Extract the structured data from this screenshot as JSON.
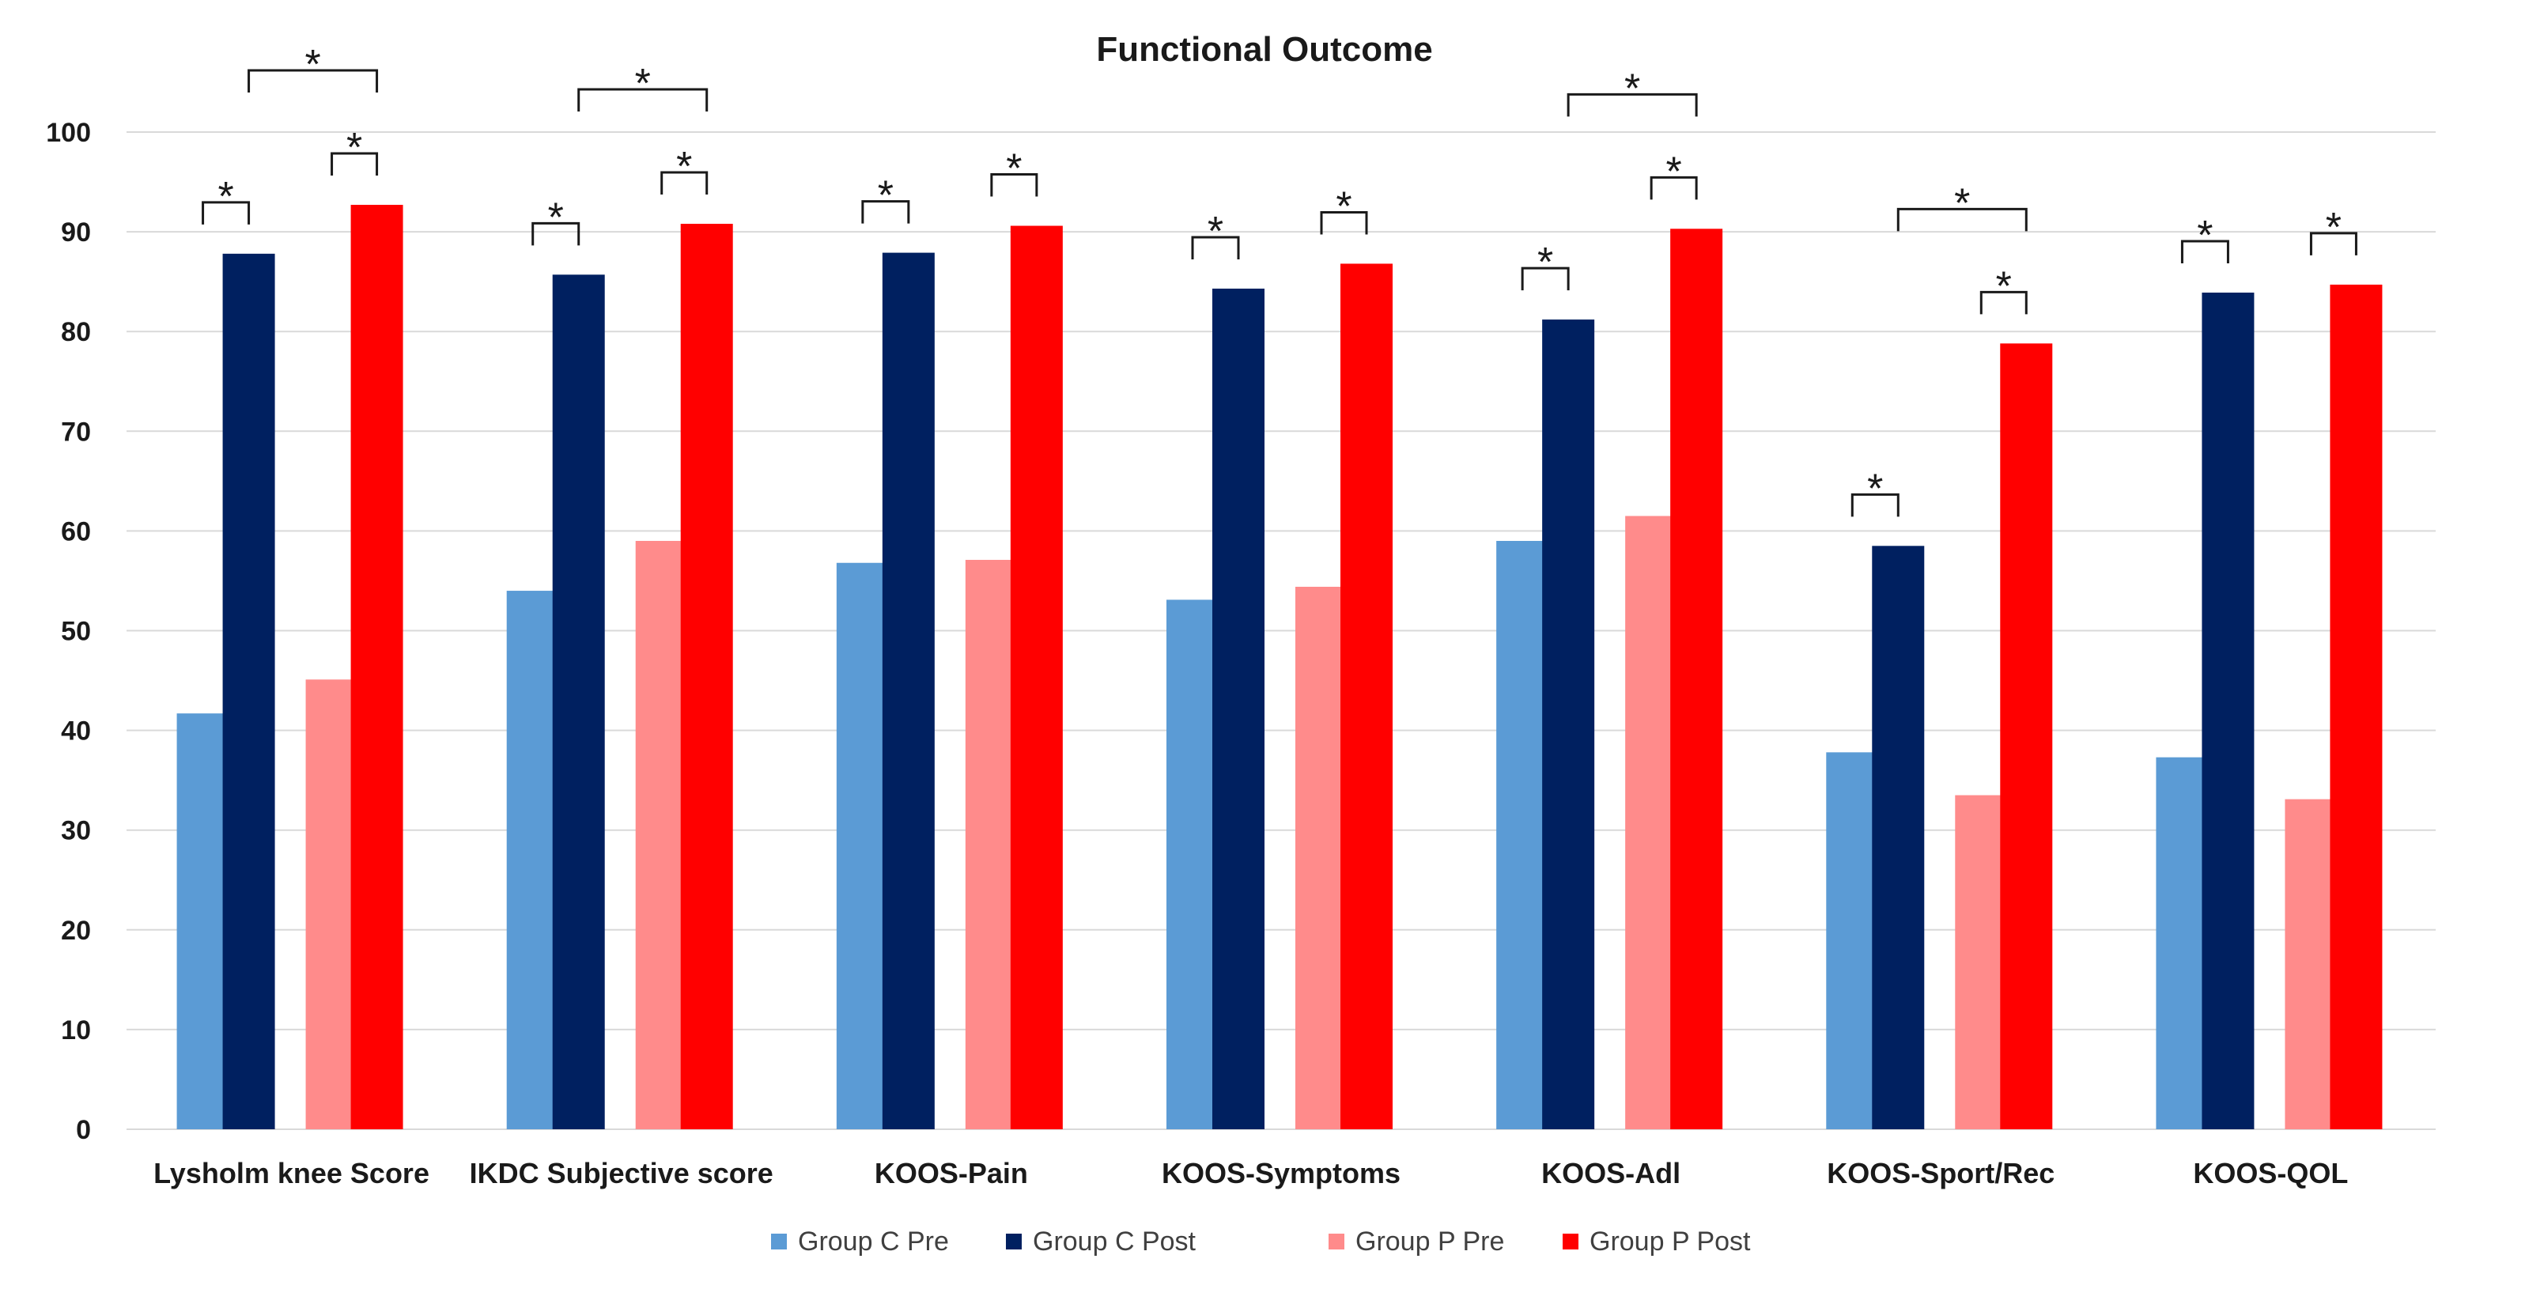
{
  "chart_data": {
    "type": "bar",
    "title": "Functional Outcome",
    "xlabel": "",
    "ylabel": "",
    "ylim": [
      0,
      100
    ],
    "yticks": [
      0,
      10,
      20,
      30,
      40,
      50,
      60,
      70,
      80,
      90,
      100
    ],
    "grid": true,
    "legend_position": "bottom",
    "categories": [
      "Lysholm knee Score",
      "IKDC Subjective score",
      "KOOS-Pain",
      "KOOS-Symptoms",
      "KOOS-Adl",
      "KOOS-Sport/Rec",
      "KOOS-QOL"
    ],
    "series": [
      {
        "name": "Group C Pre",
        "color": "#5B9BD5",
        "values": [
          41.7,
          54.0,
          56.8,
          53.1,
          59.0,
          37.8,
          37.3
        ]
      },
      {
        "name": "Group C Post",
        "color": "#002060",
        "values": [
          87.8,
          85.7,
          87.9,
          84.3,
          81.2,
          58.5,
          83.9
        ]
      },
      {
        "name": "Group P Pre",
        "color": "#FF8B8B",
        "values": [
          45.1,
          59.0,
          57.1,
          54.4,
          61.5,
          33.5,
          33.1
        ]
      },
      {
        "name": "Group P Post",
        "color": "#FF0000",
        "values": [
          92.7,
          90.8,
          90.6,
          86.8,
          90.3,
          78.8,
          84.7
        ]
      }
    ],
    "significance": [
      {
        "category": 0,
        "from": 0,
        "to": 1,
        "level": 1,
        "label": "*"
      },
      {
        "category": 0,
        "from": 2,
        "to": 3,
        "level": 1,
        "label": "*"
      },
      {
        "category": 0,
        "from": 1,
        "to": 3,
        "level": 2,
        "label": "*"
      },
      {
        "category": 1,
        "from": 0,
        "to": 1,
        "level": 1,
        "label": "*"
      },
      {
        "category": 1,
        "from": 2,
        "to": 3,
        "level": 1,
        "label": "*"
      },
      {
        "category": 1,
        "from": 1,
        "to": 3,
        "level": 2,
        "label": "*"
      },
      {
        "category": 2,
        "from": 0,
        "to": 1,
        "level": 1,
        "label": "*"
      },
      {
        "category": 2,
        "from": 2,
        "to": 3,
        "level": 1,
        "label": "*"
      },
      {
        "category": 3,
        "from": 0,
        "to": 1,
        "level": 1,
        "label": "*"
      },
      {
        "category": 3,
        "from": 2,
        "to": 3,
        "level": 1,
        "label": "*"
      },
      {
        "category": 4,
        "from": 0,
        "to": 1,
        "level": 1,
        "label": "*"
      },
      {
        "category": 4,
        "from": 2,
        "to": 3,
        "level": 1,
        "label": "*"
      },
      {
        "category": 4,
        "from": 1,
        "to": 3,
        "level": 2,
        "label": "*"
      },
      {
        "category": 5,
        "from": 0,
        "to": 1,
        "level": 1,
        "label": "*"
      },
      {
        "category": 5,
        "from": 2,
        "to": 3,
        "level": 1,
        "label": "*"
      },
      {
        "category": 5,
        "from": 1,
        "to": 3,
        "level": 2,
        "label": "*"
      },
      {
        "category": 6,
        "from": 0,
        "to": 1,
        "level": 1,
        "label": "*"
      },
      {
        "category": 6,
        "from": 2,
        "to": 3,
        "level": 1,
        "label": "*"
      }
    ]
  }
}
